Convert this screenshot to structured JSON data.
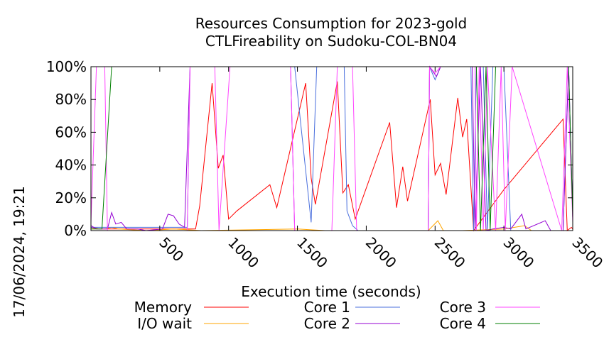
{
  "chart_data": {
    "type": "line",
    "title": "Resources Consumption for 2023-gold",
    "subtitle": "CTLFireability on Sudoku-COL-BN04",
    "xlabel": "Execution time (seconds)",
    "ylabel": "",
    "side_label": "17/06/2024, 19:21",
    "xlim": [
      0,
      3500
    ],
    "ylim": [
      0,
      100
    ],
    "x_ticks": [
      500,
      1000,
      1500,
      2000,
      2500,
      3000,
      3500
    ],
    "x_tick_labels": [
      "500",
      "1000",
      "1500",
      "2000",
      "2500",
      "3000",
      "3500"
    ],
    "y_ticks": [
      0,
      20,
      40,
      60,
      80,
      100
    ],
    "y_tick_labels": [
      "0%",
      "20%",
      "40%",
      "60%",
      "80%",
      "100%"
    ],
    "grid": false,
    "legend_position": "bottom",
    "series": [
      {
        "name": "Memory",
        "color": "#ff0000",
        "points": [
          [
            0,
            2
          ],
          [
            60,
            1
          ],
          [
            110,
            1
          ],
          [
            160,
            1
          ],
          [
            260,
            1
          ],
          [
            360,
            1
          ],
          [
            460,
            1
          ],
          [
            560,
            1
          ],
          [
            660,
            1
          ],
          [
            760,
            1
          ],
          [
            790,
            15
          ],
          [
            880,
            90
          ],
          [
            925,
            38
          ],
          [
            960,
            46
          ],
          [
            1000,
            7
          ],
          [
            1060,
            12
          ],
          [
            1300,
            28
          ],
          [
            1350,
            14
          ],
          [
            1560,
            90
          ],
          [
            1600,
            32
          ],
          [
            1630,
            16
          ],
          [
            1790,
            91
          ],
          [
            1830,
            23
          ],
          [
            1870,
            28
          ],
          [
            1920,
            7
          ],
          [
            2170,
            66
          ],
          [
            2220,
            14
          ],
          [
            2265,
            39
          ],
          [
            2300,
            18
          ],
          [
            2465,
            80
          ],
          [
            2500,
            34
          ],
          [
            2540,
            41
          ],
          [
            2580,
            22
          ],
          [
            2665,
            81
          ],
          [
            2700,
            57
          ],
          [
            2730,
            68
          ],
          [
            2780,
            0
          ],
          [
            3000,
            25
          ],
          [
            3430,
            68
          ],
          [
            3460,
            0
          ],
          [
            3490,
            2
          ],
          [
            3500,
            1
          ]
        ]
      },
      {
        "name": "I/O wait",
        "color": "#ffa500",
        "points": [
          [
            0,
            1
          ],
          [
            100,
            1
          ],
          [
            150,
            2
          ],
          [
            200,
            1
          ],
          [
            400,
            0
          ],
          [
            600,
            1
          ],
          [
            800,
            0
          ],
          [
            1500,
            1
          ],
          [
            1700,
            0
          ],
          [
            1800,
            0
          ],
          [
            2450,
            0
          ],
          [
            2520,
            6
          ],
          [
            2560,
            0
          ],
          [
            2700,
            0
          ],
          [
            3000,
            1
          ],
          [
            3150,
            3
          ],
          [
            3200,
            0
          ],
          [
            3500,
            0
          ]
        ]
      },
      {
        "name": "Core 1",
        "color": "#4a6fdd",
        "points": [
          [
            0,
            2
          ],
          [
            700,
            2
          ],
          [
            720,
            100
          ],
          [
            1480,
            100
          ],
          [
            1600,
            5
          ],
          [
            1640,
            100
          ],
          [
            1840,
            100
          ],
          [
            1860,
            12
          ],
          [
            1900,
            3
          ],
          [
            1940,
            0
          ],
          [
            2450,
            0
          ],
          [
            2460,
            100
          ],
          [
            2500,
            92
          ],
          [
            2540,
            100
          ],
          [
            2760,
            100
          ],
          [
            2780,
            0
          ],
          [
            2800,
            100
          ],
          [
            2850,
            100
          ],
          [
            2880,
            0
          ],
          [
            2920,
            100
          ],
          [
            3000,
            100
          ],
          [
            3050,
            0
          ],
          [
            3430,
            0
          ],
          [
            3470,
            100
          ],
          [
            3500,
            8
          ]
        ]
      },
      {
        "name": "Core 2",
        "color": "#9400d3",
        "points": [
          [
            0,
            3
          ],
          [
            40,
            1
          ],
          [
            120,
            1
          ],
          [
            150,
            11
          ],
          [
            180,
            4
          ],
          [
            220,
            5
          ],
          [
            260,
            1
          ],
          [
            340,
            1
          ],
          [
            400,
            0
          ],
          [
            520,
            1
          ],
          [
            560,
            10
          ],
          [
            600,
            9
          ],
          [
            640,
            4
          ],
          [
            680,
            2
          ],
          [
            720,
            100
          ],
          [
            1450,
            100
          ],
          [
            1480,
            0
          ],
          [
            1700,
            0
          ],
          [
            2450,
            0
          ],
          [
            2460,
            100
          ],
          [
            2510,
            94
          ],
          [
            2540,
            100
          ],
          [
            2770,
            100
          ],
          [
            2790,
            0
          ],
          [
            2830,
            100
          ],
          [
            2870,
            0
          ],
          [
            2920,
            1
          ],
          [
            3000,
            2
          ],
          [
            3050,
            1
          ],
          [
            3130,
            10
          ],
          [
            3160,
            1
          ],
          [
            3300,
            6
          ],
          [
            3340,
            0
          ],
          [
            3430,
            0
          ],
          [
            3470,
            100
          ],
          [
            3500,
            8
          ]
        ]
      },
      {
        "name": "Core 3",
        "color": "#ff44ff",
        "points": [
          [
            0,
            5
          ],
          [
            40,
            100
          ],
          [
            100,
            100
          ],
          [
            120,
            0
          ],
          [
            700,
            0
          ],
          [
            720,
            100
          ],
          [
            900,
            100
          ],
          [
            930,
            0
          ],
          [
            1010,
            100
          ],
          [
            1450,
            100
          ],
          [
            1480,
            0
          ],
          [
            1750,
            0
          ],
          [
            1790,
            100
          ],
          [
            1900,
            100
          ],
          [
            1930,
            0
          ],
          [
            2450,
            0
          ],
          [
            2460,
            100
          ],
          [
            2500,
            96
          ],
          [
            2540,
            100
          ],
          [
            2790,
            100
          ],
          [
            2800,
            0
          ],
          [
            2820,
            100
          ],
          [
            2850,
            0
          ],
          [
            2880,
            100
          ],
          [
            2940,
            0
          ],
          [
            2980,
            100
          ],
          [
            3010,
            0
          ],
          [
            3060,
            100
          ],
          [
            3420,
            0
          ],
          [
            3460,
            100
          ],
          [
            3500,
            5
          ]
        ]
      },
      {
        "name": "Core 4",
        "color": "#007f00",
        "points": [
          [
            0,
            1
          ],
          [
            80,
            1
          ],
          [
            150,
            100
          ],
          [
            2800,
            100
          ],
          [
            2830,
            0
          ],
          [
            2870,
            100
          ],
          [
            2900,
            0
          ],
          [
            2940,
            100
          ],
          [
            3440,
            100
          ],
          [
            3470,
            100
          ],
          [
            3500,
            8
          ]
        ]
      }
    ]
  }
}
